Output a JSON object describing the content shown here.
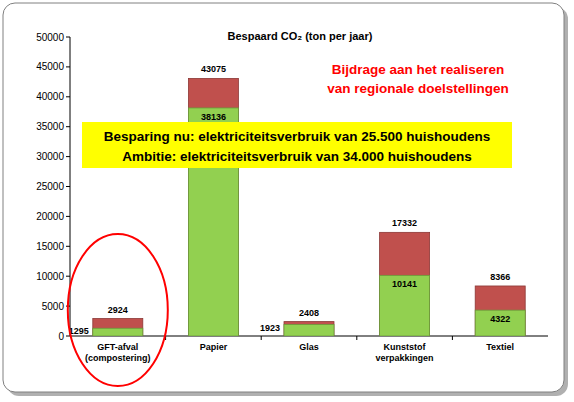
{
  "chart_data": {
    "type": "bar",
    "title": "Bespaard CO₂ (ton per jaar)",
    "annotations": [
      "Bijdrage aan het realiseren\nvan regionale doelstellingen",
      "Besparing nu: elektriciteitsverbruik van 25.500 huishoudens",
      "Ambitie: elektriciteitsverbruik van 34.000 huishoudens"
    ],
    "categories": [
      "GFT-afval\n(compostering)",
      "Papier",
      "Glas",
      "Kunststof\nverpakkingen",
      "Textiel"
    ],
    "series": [
      {
        "color": "#c0504d",
        "values": [
          2924,
          43075,
          2408,
          17332,
          8366
        ]
      },
      {
        "color": "#92d050",
        "values": [
          1295,
          38136,
          1923,
          10141,
          4322
        ]
      }
    ],
    "stacked": false,
    "data_labels": true,
    "grid": false,
    "ylim": [
      0,
      50000
    ],
    "yticks": [
      0,
      5000,
      10000,
      15000,
      20000,
      25000,
      30000,
      35000,
      40000,
      45000,
      50000
    ]
  }
}
